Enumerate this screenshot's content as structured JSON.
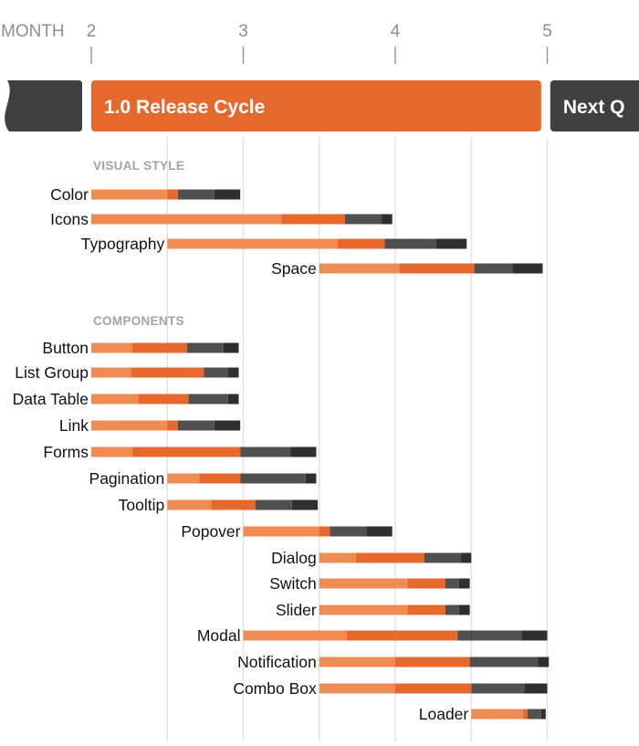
{
  "chart_data": {
    "type": "bar",
    "subtype": "stacked-horizontal-gantt",
    "x_axis_title": "MONTH",
    "x_ticks": [
      2,
      3,
      4,
      5
    ],
    "xlim": [
      1.0,
      5.6
    ],
    "grid": true,
    "colors": {
      "segments": [
        "#ef8c54",
        "#e5682c",
        "#505050",
        "#2f2f2f"
      ],
      "band_current": "#e5682c",
      "band_other": "#404040",
      "grid": "#e2e2e2"
    },
    "bands": [
      {
        "label": "",
        "start": 1.0,
        "end": 1.94,
        "color": "#404040"
      },
      {
        "label": "1.0 Release Cycle",
        "start": 2.0,
        "end": 4.96,
        "color": "#e5682c"
      },
      {
        "label": "Next Q",
        "start": 5.02,
        "end": 5.6,
        "color": "#404040"
      }
    ],
    "sections": [
      {
        "label": "VISUAL STYLE",
        "rows": [
          {
            "label": "Color",
            "start": 2.0,
            "segments": [
              0.5,
              0.07,
              0.24,
              0.17
            ]
          },
          {
            "label": "Icons",
            "start": 2.0,
            "segments": [
              1.25,
              0.42,
              0.24,
              0.07
            ]
          },
          {
            "label": "Typography",
            "start": 2.5,
            "segments": [
              1.12,
              0.31,
              0.34,
              0.2
            ]
          },
          {
            "label": "Space",
            "start": 3.5,
            "segments": [
              0.53,
              0.49,
              0.25,
              0.2
            ]
          }
        ]
      },
      {
        "label": "COMPONENTS",
        "rows": [
          {
            "label": "Button",
            "start": 2.0,
            "segments": [
              0.27,
              0.36,
              0.24,
              0.1
            ]
          },
          {
            "label": "List Group",
            "start": 2.0,
            "segments": [
              0.26,
              0.48,
              0.16,
              0.07
            ]
          },
          {
            "label": "Data Table",
            "start": 2.0,
            "segments": [
              0.31,
              0.33,
              0.26,
              0.07
            ]
          },
          {
            "label": "Link",
            "start": 2.0,
            "segments": [
              0.5,
              0.07,
              0.24,
              0.17
            ]
          },
          {
            "label": "Forms",
            "start": 2.0,
            "segments": [
              0.27,
              0.71,
              0.33,
              0.17
            ]
          },
          {
            "label": "Pagination",
            "start": 2.5,
            "segments": [
              0.21,
              0.27,
              0.43,
              0.07
            ]
          },
          {
            "label": "Tooltip",
            "start": 2.5,
            "segments": [
              0.29,
              0.29,
              0.24,
              0.17
            ]
          },
          {
            "label": "Popover",
            "start": 3.0,
            "segments": [
              0.5,
              0.07,
              0.24,
              0.17
            ]
          },
          {
            "label": "Dialog",
            "start": 3.5,
            "segments": [
              0.24,
              0.45,
              0.24,
              0.07
            ]
          },
          {
            "label": "Switch",
            "start": 3.5,
            "segments": [
              0.58,
              0.25,
              0.09,
              0.07
            ]
          },
          {
            "label": "Slider",
            "start": 3.5,
            "segments": [
              0.58,
              0.25,
              0.09,
              0.07
            ]
          },
          {
            "label": "Modal",
            "start": 3.0,
            "segments": [
              0.68,
              0.73,
              0.42,
              0.17
            ]
          },
          {
            "label": "Notification",
            "start": 3.5,
            "segments": [
              0.5,
              0.49,
              0.45,
              0.07
            ]
          },
          {
            "label": "Combo Box",
            "start": 3.5,
            "segments": [
              0.5,
              0.5,
              0.35,
              0.15
            ]
          },
          {
            "label": "Loader",
            "start": 4.5,
            "segments": [
              0.34,
              0.03,
              0.09,
              0.03
            ]
          }
        ]
      }
    ]
  }
}
